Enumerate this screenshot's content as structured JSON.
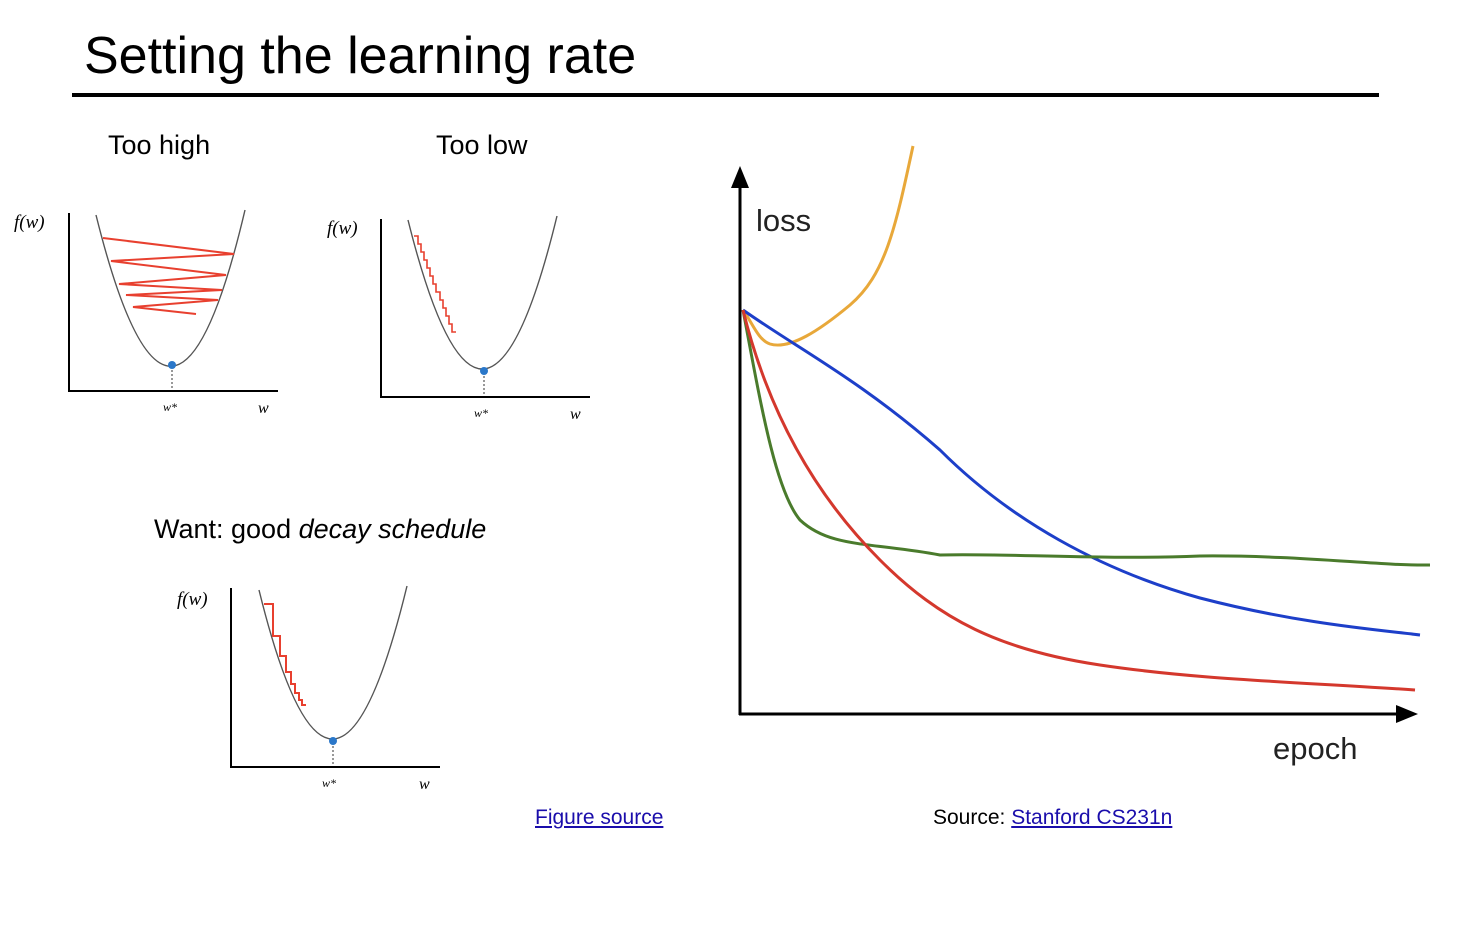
{
  "slide": {
    "title": "Setting the learning rate"
  },
  "panels": {
    "too_high": {
      "label": "Too high",
      "y_label": "f(w)",
      "x_label": "w",
      "min_label": "w*"
    },
    "too_low": {
      "label": "Too low",
      "y_label": "f(w)",
      "x_label": "w",
      "min_label": "w*"
    },
    "decay": {
      "y_label": "f(w)",
      "x_label": "w",
      "min_label": "w*"
    }
  },
  "want": {
    "prefix": "Want: good ",
    "emphasis": "decay schedule"
  },
  "loss_chart": {
    "y_label": "loss",
    "x_label": "epoch"
  },
  "colors": {
    "step_arrows": "#e8402f",
    "minimum_dot": "#2a77c9",
    "curve_orange": "#e8a83a",
    "curve_blue": "#1d3fc9",
    "curve_green": "#4a7b2c",
    "curve_red": "#d4382d",
    "link": "#1a0dab"
  },
  "footer": {
    "figure_source": "Figure source",
    "source_prefix": "Source: ",
    "source_link": "Stanford CS231n"
  }
}
